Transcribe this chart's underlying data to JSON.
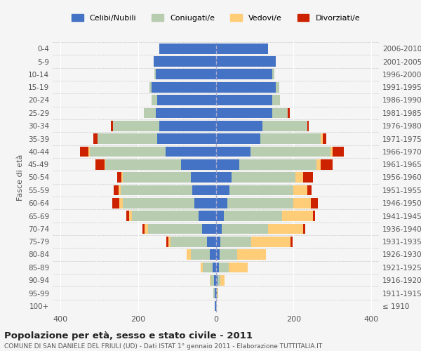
{
  "age_groups": [
    "100+",
    "95-99",
    "90-94",
    "85-89",
    "80-84",
    "75-79",
    "70-74",
    "65-69",
    "60-64",
    "55-59",
    "50-54",
    "45-49",
    "40-44",
    "35-39",
    "30-34",
    "25-29",
    "20-24",
    "15-19",
    "10-14",
    "5-9",
    "0-4"
  ],
  "birth_years": [
    "≤ 1910",
    "1911-1915",
    "1916-1920",
    "1921-1925",
    "1926-1930",
    "1931-1935",
    "1936-1940",
    "1941-1945",
    "1946-1950",
    "1951-1955",
    "1956-1960",
    "1961-1965",
    "1966-1970",
    "1971-1975",
    "1976-1980",
    "1981-1985",
    "1986-1990",
    "1991-1995",
    "1996-2000",
    "2001-2005",
    "2006-2010"
  ],
  "males": {
    "celibi": [
      2,
      3,
      5,
      8,
      15,
      22,
      35,
      45,
      55,
      60,
      65,
      90,
      130,
      150,
      145,
      155,
      150,
      165,
      155,
      160,
      145
    ],
    "coniugati": [
      1,
      3,
      8,
      25,
      50,
      95,
      140,
      170,
      185,
      185,
      175,
      195,
      195,
      155,
      120,
      30,
      15,
      5,
      3,
      0,
      0
    ],
    "vedovi": [
      0,
      1,
      2,
      5,
      10,
      5,
      8,
      8,
      8,
      5,
      3,
      2,
      2,
      0,
      0,
      0,
      0,
      0,
      0,
      0,
      0
    ],
    "divorziati": [
      0,
      0,
      0,
      0,
      0,
      5,
      5,
      8,
      18,
      12,
      10,
      22,
      22,
      10,
      5,
      0,
      0,
      0,
      0,
      0,
      0
    ]
  },
  "females": {
    "nubili": [
      1,
      3,
      4,
      8,
      10,
      12,
      15,
      20,
      30,
      35,
      40,
      60,
      90,
      115,
      120,
      145,
      145,
      155,
      145,
      155,
      135
    ],
    "coniugate": [
      1,
      2,
      8,
      25,
      45,
      80,
      120,
      150,
      170,
      165,
      165,
      200,
      205,
      155,
      115,
      40,
      20,
      8,
      5,
      0,
      0
    ],
    "vedove": [
      0,
      2,
      10,
      50,
      75,
      100,
      90,
      80,
      45,
      35,
      20,
      10,
      5,
      5,
      0,
      0,
      0,
      0,
      0,
      0,
      0
    ],
    "divorziate": [
      0,
      0,
      0,
      0,
      0,
      5,
      5,
      5,
      18,
      12,
      25,
      30,
      30,
      10,
      5,
      5,
      0,
      0,
      0,
      0,
      0
    ]
  },
  "colors": {
    "celibi_nubili": "#4472C4",
    "coniugati": "#B8CCB0",
    "vedovi": "#FFCC77",
    "divorziati": "#CC2200"
  },
  "xlim": 420,
  "title": "Popolazione per età, sesso e stato civile - 2011",
  "subtitle": "COMUNE DI SAN DANIELE DEL FRIULI (UD) - Dati ISTAT 1° gennaio 2011 - Elaborazione TUTTITALIA.IT",
  "ylabel": "Fasce di età",
  "legend_labels": [
    "Celibi/Nubili",
    "Coniugati/e",
    "Vedovi/e",
    "Divorziati/e"
  ],
  "background_color": "#f5f5f5"
}
